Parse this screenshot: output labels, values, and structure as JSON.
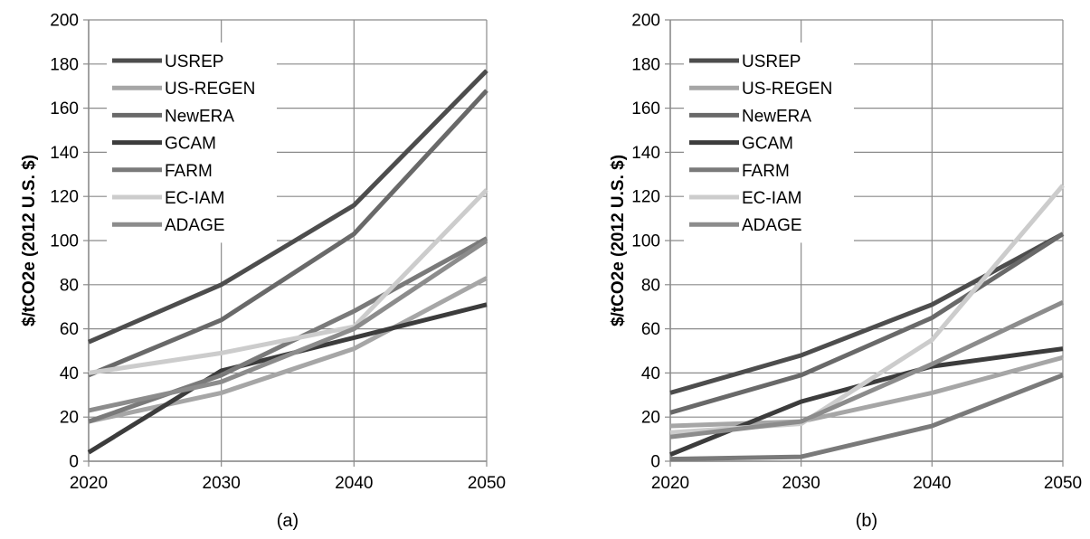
{
  "chart_data": [
    {
      "type": "line",
      "panel_label": "(a)",
      "ylabel": "$/tCO2e (2012 U.S. $)",
      "xlabel": "",
      "x": [
        2020,
        2030,
        2040,
        2050
      ],
      "x_tick_labels": [
        "2020",
        "2030",
        "2040",
        "2050"
      ],
      "y_tick_labels": [
        "0",
        "20",
        "40",
        "60",
        "80",
        "100",
        "120",
        "140",
        "160",
        "180",
        "200"
      ],
      "ylim": [
        0,
        200
      ],
      "y_step": 20,
      "grid": true,
      "legend_position": "top-left",
      "series": [
        {
          "name": "USREP",
          "color": "#4d4d4d",
          "values": [
            54,
            80,
            116,
            177
          ]
        },
        {
          "name": "US-REGEN",
          "color": "#a6a6a6",
          "values": [
            18,
            31,
            51,
            83
          ]
        },
        {
          "name": "NewERA",
          "color": "#696969",
          "values": [
            39,
            64,
            103,
            168
          ]
        },
        {
          "name": "GCAM",
          "color": "#3c3c3c",
          "values": [
            4,
            41,
            56,
            71
          ]
        },
        {
          "name": "FARM",
          "color": "#7a7a7a",
          "values": [
            18,
            39,
            68,
            101
          ]
        },
        {
          "name": "EC-IAM",
          "color": "#cccccc",
          "values": [
            40,
            49,
            61,
            123
          ]
        },
        {
          "name": "ADAGE",
          "color": "#8c8c8c",
          "values": [
            23,
            36,
            60,
            100
          ]
        }
      ]
    },
    {
      "type": "line",
      "panel_label": "(b)",
      "ylabel": "$/tCO2e (2012 U.S. $)",
      "xlabel": "",
      "x": [
        2020,
        2030,
        2040,
        2050
      ],
      "x_tick_labels": [
        "2020",
        "2030",
        "2040",
        "2050"
      ],
      "y_tick_labels": [
        "0",
        "20",
        "40",
        "60",
        "80",
        "100",
        "120",
        "140",
        "160",
        "180",
        "200"
      ],
      "ylim": [
        0,
        200
      ],
      "y_step": 20,
      "grid": true,
      "legend_position": "top-left",
      "series": [
        {
          "name": "USREP",
          "color": "#4d4d4d",
          "values": [
            31,
            48,
            71,
            103
          ]
        },
        {
          "name": "US-REGEN",
          "color": "#a6a6a6",
          "values": [
            16,
            18,
            31,
            47
          ]
        },
        {
          "name": "NewERA",
          "color": "#696969",
          "values": [
            22,
            39,
            65,
            103
          ]
        },
        {
          "name": "GCAM",
          "color": "#3c3c3c",
          "values": [
            3,
            27,
            43,
            51
          ]
        },
        {
          "name": "FARM",
          "color": "#7a7a7a",
          "values": [
            1,
            2,
            16,
            39
          ]
        },
        {
          "name": "EC-IAM",
          "color": "#cccccc",
          "values": [
            13,
            17,
            55,
            125
          ]
        },
        {
          "name": "ADAGE",
          "color": "#8c8c8c",
          "values": [
            11,
            18,
            44,
            72
          ]
        }
      ]
    }
  ]
}
